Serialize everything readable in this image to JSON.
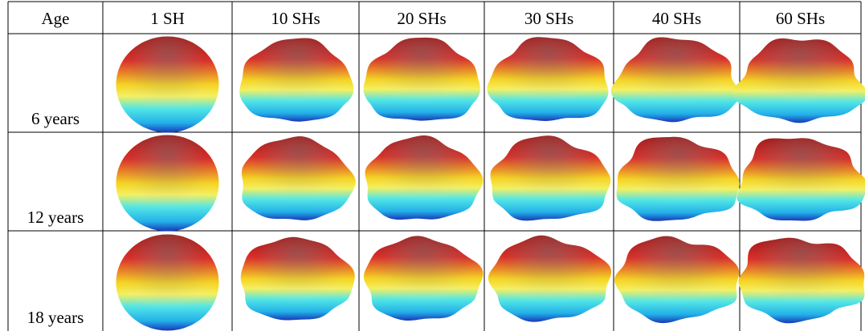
{
  "table": {
    "header": [
      "Age",
      "1 SH",
      "10 SHs",
      "20 SHs",
      "30 SHs",
      "40 SHs",
      "60 SHs"
    ],
    "rows": [
      [
        "6 years"
      ],
      [
        "12 years"
      ],
      [
        "18 years"
      ]
    ]
  }
}
